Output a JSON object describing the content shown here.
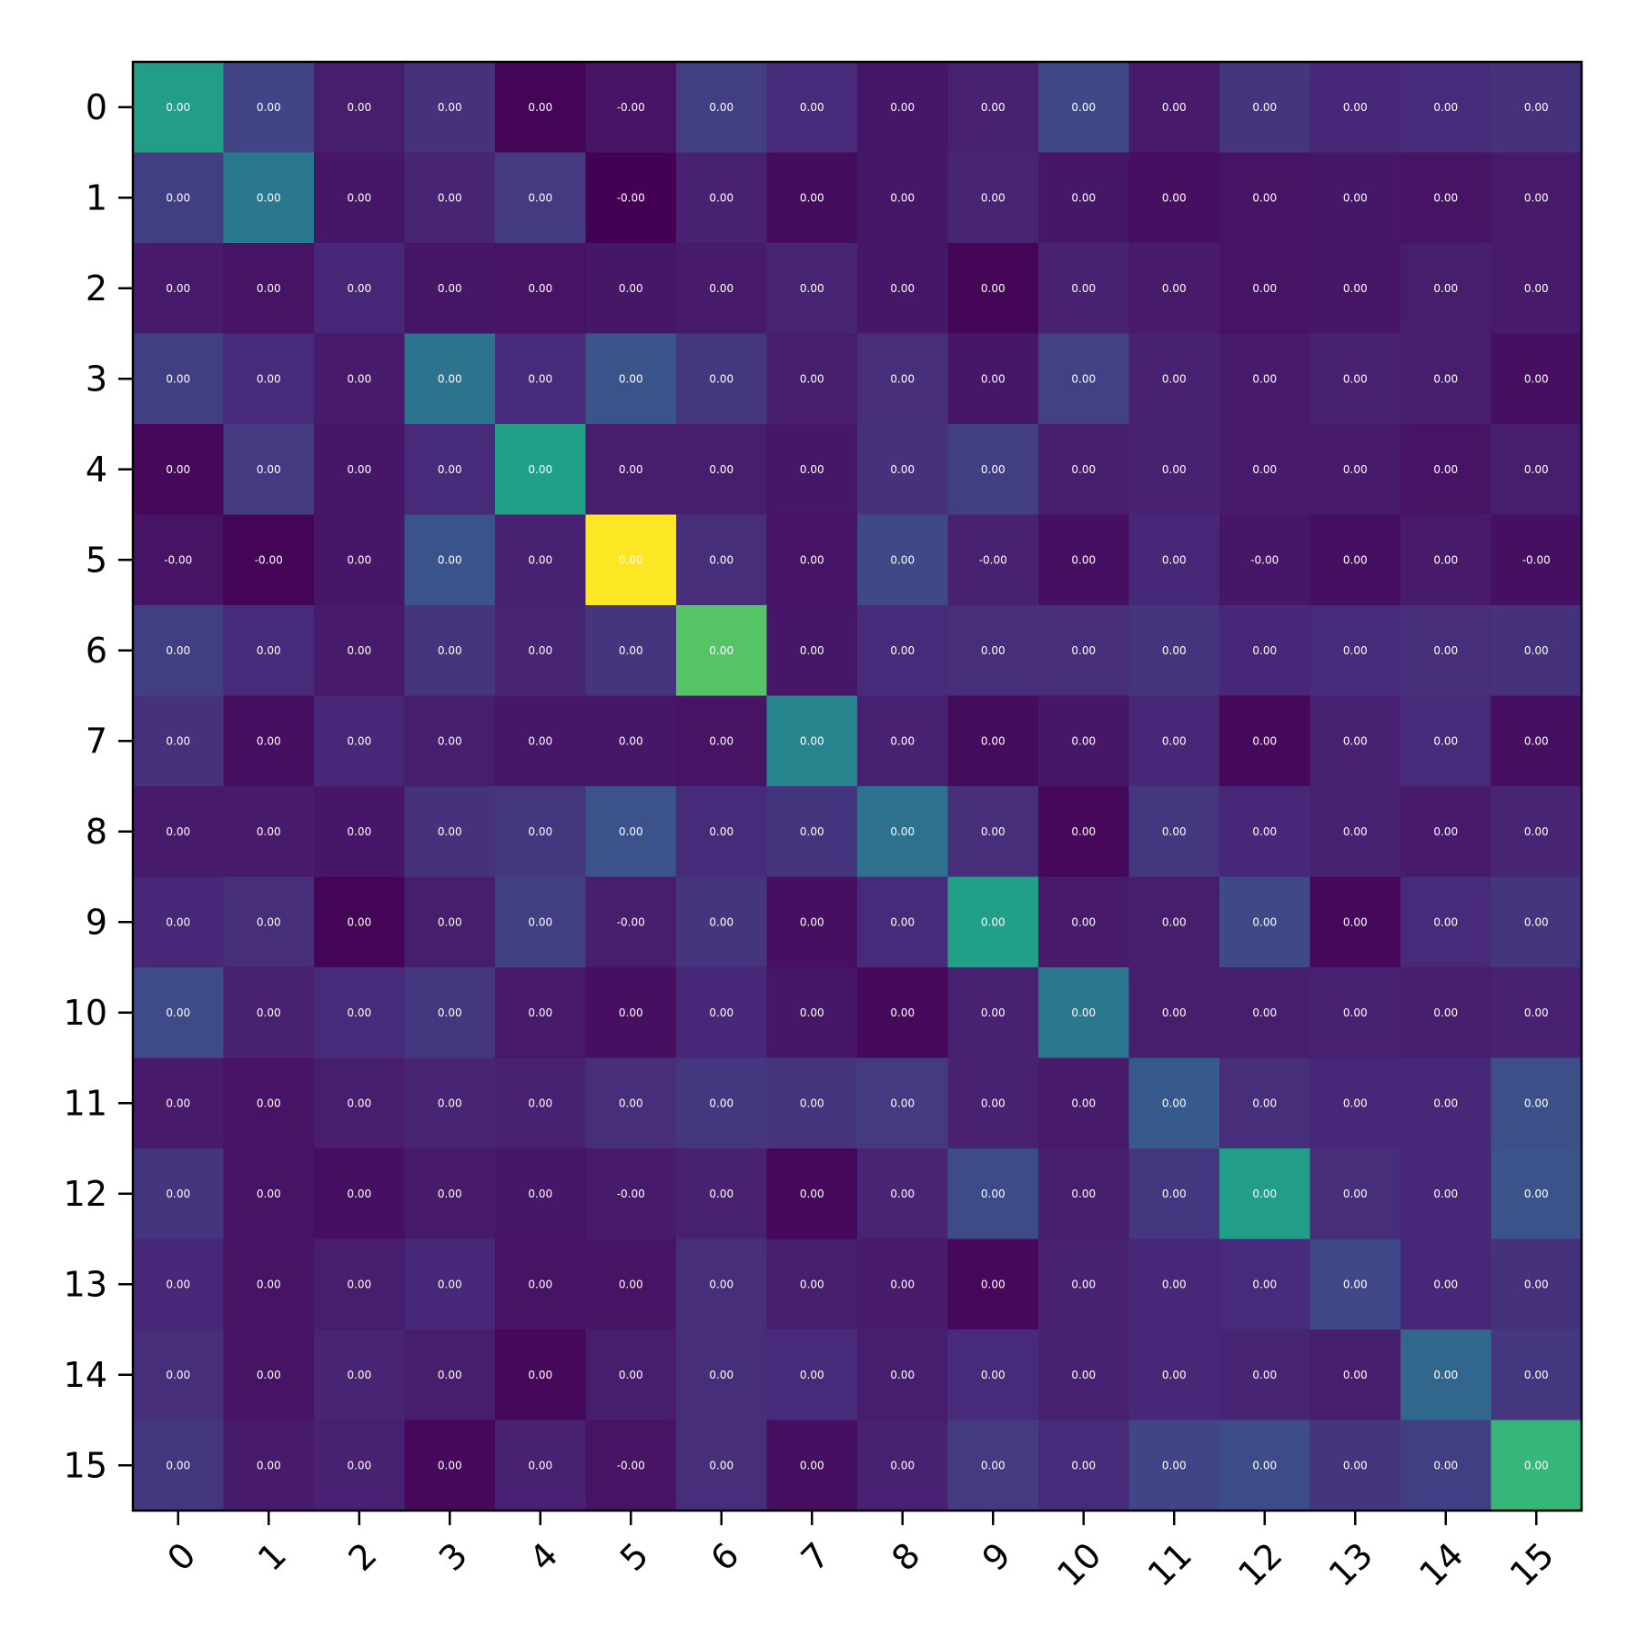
{
  "chart_data": {
    "type": "heatmap",
    "title": "",
    "xlabel": "",
    "ylabel": "",
    "x_categories": [
      "0",
      "1",
      "2",
      "3",
      "4",
      "5",
      "6",
      "7",
      "8",
      "9",
      "10",
      "11",
      "12",
      "13",
      "14",
      "15"
    ],
    "y_categories": [
      "0",
      "1",
      "2",
      "3",
      "4",
      "5",
      "6",
      "7",
      "8",
      "9",
      "10",
      "11",
      "12",
      "13",
      "14",
      "15"
    ],
    "colormap": "viridis",
    "values": [
      [
        0.55,
        0.2,
        0.08,
        0.14,
        0.01,
        0.05,
        0.18,
        0.12,
        0.06,
        0.09,
        0.22,
        0.07,
        0.15,
        0.11,
        0.12,
        0.14
      ],
      [
        0.18,
        0.4,
        0.06,
        0.1,
        0.17,
        0.0,
        0.09,
        0.03,
        0.06,
        0.1,
        0.06,
        0.04,
        0.05,
        0.06,
        0.05,
        0.07
      ],
      [
        0.07,
        0.05,
        0.11,
        0.06,
        0.05,
        0.06,
        0.07,
        0.1,
        0.06,
        0.01,
        0.09,
        0.07,
        0.05,
        0.06,
        0.08,
        0.07
      ],
      [
        0.18,
        0.12,
        0.07,
        0.38,
        0.12,
        0.26,
        0.16,
        0.08,
        0.13,
        0.06,
        0.19,
        0.09,
        0.07,
        0.09,
        0.08,
        0.04
      ],
      [
        0.02,
        0.17,
        0.06,
        0.12,
        0.56,
        0.08,
        0.08,
        0.06,
        0.14,
        0.18,
        0.08,
        0.09,
        0.07,
        0.07,
        0.05,
        0.08
      ],
      [
        0.05,
        0.01,
        0.06,
        0.26,
        0.09,
        1.0,
        0.13,
        0.05,
        0.22,
        0.09,
        0.04,
        0.11,
        0.06,
        0.04,
        0.07,
        0.04
      ],
      [
        0.18,
        0.12,
        0.07,
        0.15,
        0.1,
        0.15,
        0.73,
        0.06,
        0.12,
        0.13,
        0.13,
        0.15,
        0.11,
        0.12,
        0.13,
        0.14
      ],
      [
        0.14,
        0.04,
        0.11,
        0.08,
        0.06,
        0.06,
        0.05,
        0.45,
        0.09,
        0.03,
        0.06,
        0.11,
        0.02,
        0.09,
        0.12,
        0.04
      ],
      [
        0.07,
        0.07,
        0.06,
        0.14,
        0.16,
        0.25,
        0.12,
        0.15,
        0.37,
        0.13,
        0.02,
        0.16,
        0.11,
        0.09,
        0.07,
        0.1
      ],
      [
        0.11,
        0.13,
        0.01,
        0.08,
        0.18,
        0.08,
        0.15,
        0.04,
        0.12,
        0.56,
        0.07,
        0.08,
        0.22,
        0.02,
        0.12,
        0.15
      ],
      [
        0.23,
        0.09,
        0.12,
        0.16,
        0.07,
        0.04,
        0.11,
        0.06,
        0.02,
        0.09,
        0.4,
        0.08,
        0.08,
        0.09,
        0.08,
        0.09
      ],
      [
        0.07,
        0.05,
        0.08,
        0.1,
        0.09,
        0.13,
        0.16,
        0.15,
        0.17,
        0.09,
        0.07,
        0.28,
        0.13,
        0.11,
        0.11,
        0.24
      ],
      [
        0.15,
        0.05,
        0.04,
        0.07,
        0.06,
        0.07,
        0.09,
        0.02,
        0.1,
        0.23,
        0.08,
        0.16,
        0.55,
        0.13,
        0.11,
        0.26
      ],
      [
        0.11,
        0.05,
        0.08,
        0.11,
        0.05,
        0.05,
        0.13,
        0.08,
        0.07,
        0.02,
        0.09,
        0.11,
        0.12,
        0.21,
        0.11,
        0.14
      ],
      [
        0.13,
        0.05,
        0.1,
        0.08,
        0.02,
        0.08,
        0.13,
        0.12,
        0.08,
        0.12,
        0.09,
        0.11,
        0.1,
        0.08,
        0.33,
        0.16
      ],
      [
        0.16,
        0.07,
        0.09,
        0.02,
        0.09,
        0.05,
        0.13,
        0.04,
        0.09,
        0.17,
        0.12,
        0.2,
        0.23,
        0.15,
        0.18,
        0.66
      ]
    ],
    "cell_labels": [
      [
        "0.00",
        "0.00",
        "0.00",
        "0.00",
        "0.00",
        "-0.00",
        "0.00",
        "0.00",
        "0.00",
        "0.00",
        "0.00",
        "0.00",
        "0.00",
        "0.00",
        "0.00",
        "0.00"
      ],
      [
        "0.00",
        "0.00",
        "0.00",
        "0.00",
        "0.00",
        "-0.00",
        "0.00",
        "0.00",
        "0.00",
        "0.00",
        "0.00",
        "0.00",
        "0.00",
        "0.00",
        "0.00",
        "0.00"
      ],
      [
        "0.00",
        "0.00",
        "0.00",
        "0.00",
        "0.00",
        "0.00",
        "0.00",
        "0.00",
        "0.00",
        "0.00",
        "0.00",
        "0.00",
        "0.00",
        "0.00",
        "0.00",
        "0.00"
      ],
      [
        "0.00",
        "0.00",
        "0.00",
        "0.00",
        "0.00",
        "0.00",
        "0.00",
        "0.00",
        "0.00",
        "0.00",
        "0.00",
        "0.00",
        "0.00",
        "0.00",
        "0.00",
        "0.00"
      ],
      [
        "0.00",
        "0.00",
        "0.00",
        "0.00",
        "0.00",
        "0.00",
        "0.00",
        "0.00",
        "0.00",
        "0.00",
        "0.00",
        "0.00",
        "0.00",
        "0.00",
        "0.00",
        "0.00"
      ],
      [
        "-0.00",
        "-0.00",
        "0.00",
        "0.00",
        "0.00",
        "0.00",
        "0.00",
        "0.00",
        "0.00",
        "-0.00",
        "0.00",
        "0.00",
        "-0.00",
        "0.00",
        "0.00",
        "-0.00"
      ],
      [
        "0.00",
        "0.00",
        "0.00",
        "0.00",
        "0.00",
        "0.00",
        "0.00",
        "0.00",
        "0.00",
        "0.00",
        "0.00",
        "0.00",
        "0.00",
        "0.00",
        "0.00",
        "0.00"
      ],
      [
        "0.00",
        "0.00",
        "0.00",
        "0.00",
        "0.00",
        "0.00",
        "0.00",
        "0.00",
        "0.00",
        "0.00",
        "0.00",
        "0.00",
        "0.00",
        "0.00",
        "0.00",
        "0.00"
      ],
      [
        "0.00",
        "0.00",
        "0.00",
        "0.00",
        "0.00",
        "0.00",
        "0.00",
        "0.00",
        "0.00",
        "0.00",
        "0.00",
        "0.00",
        "0.00",
        "0.00",
        "0.00",
        "0.00"
      ],
      [
        "0.00",
        "0.00",
        "0.00",
        "0.00",
        "0.00",
        "-0.00",
        "0.00",
        "0.00",
        "0.00",
        "0.00",
        "0.00",
        "0.00",
        "0.00",
        "0.00",
        "0.00",
        "0.00"
      ],
      [
        "0.00",
        "0.00",
        "0.00",
        "0.00",
        "0.00",
        "0.00",
        "0.00",
        "0.00",
        "0.00",
        "0.00",
        "0.00",
        "0.00",
        "0.00",
        "0.00",
        "0.00",
        "0.00"
      ],
      [
        "0.00",
        "0.00",
        "0.00",
        "0.00",
        "0.00",
        "0.00",
        "0.00",
        "0.00",
        "0.00",
        "0.00",
        "0.00",
        "0.00",
        "0.00",
        "0.00",
        "0.00",
        "0.00"
      ],
      [
        "0.00",
        "0.00",
        "0.00",
        "0.00",
        "0.00",
        "-0.00",
        "0.00",
        "0.00",
        "0.00",
        "0.00",
        "0.00",
        "0.00",
        "0.00",
        "0.00",
        "0.00",
        "0.00"
      ],
      [
        "0.00",
        "0.00",
        "0.00",
        "0.00",
        "0.00",
        "0.00",
        "0.00",
        "0.00",
        "0.00",
        "0.00",
        "0.00",
        "0.00",
        "0.00",
        "0.00",
        "0.00",
        "0.00"
      ],
      [
        "0.00",
        "0.00",
        "0.00",
        "0.00",
        "0.00",
        "0.00",
        "0.00",
        "0.00",
        "0.00",
        "0.00",
        "0.00",
        "0.00",
        "0.00",
        "0.00",
        "0.00",
        "0.00"
      ],
      [
        "0.00",
        "0.00",
        "0.00",
        "0.00",
        "0.00",
        "-0.00",
        "0.00",
        "0.00",
        "0.00",
        "0.00",
        "0.00",
        "0.00",
        "0.00",
        "0.00",
        "0.00",
        "0.00"
      ]
    ],
    "grid": false,
    "legend": "none"
  }
}
